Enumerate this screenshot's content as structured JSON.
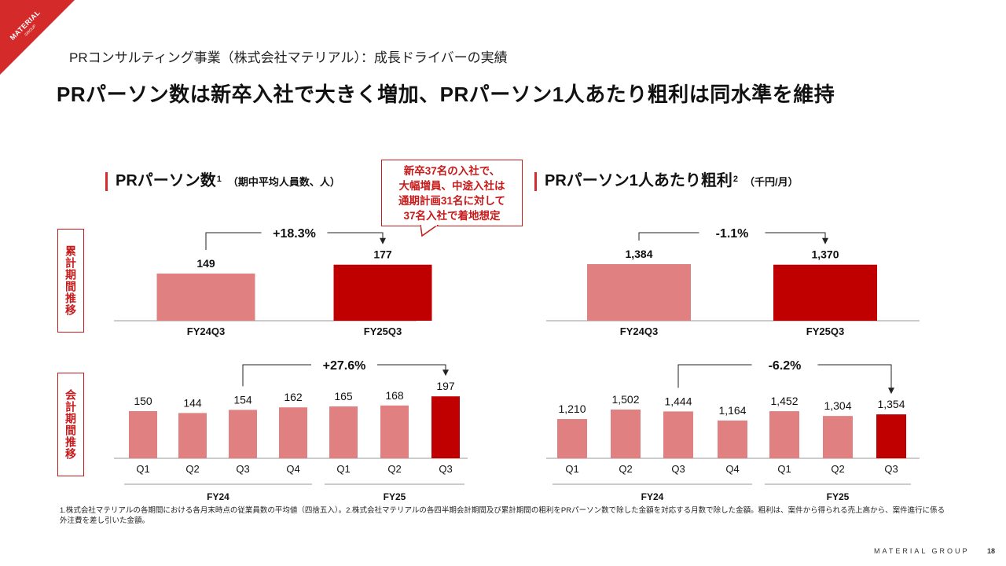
{
  "brand": {
    "logo_text": "MATERIAL",
    "logo_sub": "GROUP",
    "footer_name": "MATERIAL GROUP",
    "page_number": "18",
    "colors": {
      "accent": "#c00000",
      "light_bar": "#e08080",
      "title_bar": "#d62c2c"
    }
  },
  "section_title": "PRコンサルティング事業（株式会社マテリアル）：成長ドライバーの実績",
  "headline": "PRパーソン数は新卒入社で大きく増加、PRパーソン1人あたり粗利は同水準を維持",
  "left": {
    "title": "PRパーソン数",
    "sup": "1",
    "unit": "（期中平均人員数、人）"
  },
  "right": {
    "title": "PRパーソン1人あたり粗利",
    "sup": "2",
    "unit": "（千円/月）"
  },
  "row_labels": {
    "cumulative": "累計期間推移",
    "quarterly": "会計期間推移"
  },
  "callout": {
    "lines": [
      "新卒37名の入社で、",
      "大幅増員、中途入社は",
      "通期計画31名に対して",
      "37名入社で着地想定"
    ]
  },
  "chart_data": [
    {
      "id": "persons-cumulative",
      "type": "bar",
      "categories": [
        "FY24Q3",
        "FY25Q3"
      ],
      "values": [
        149,
        177
      ],
      "labels": [
        "149",
        "177"
      ],
      "highlight": [
        false,
        true
      ],
      "change": "+18.3%",
      "change_from": 0,
      "change_to": 1
    },
    {
      "id": "persons-quarterly",
      "type": "bar",
      "categories": [
        "Q1",
        "Q2",
        "Q3",
        "Q4",
        "Q1",
        "Q2",
        "Q3"
      ],
      "values": [
        150,
        144,
        154,
        162,
        165,
        168,
        197
      ],
      "labels": [
        "150",
        "144",
        "154",
        "162",
        "165",
        "168",
        "197"
      ],
      "highlight": [
        false,
        false,
        false,
        false,
        false,
        false,
        true
      ],
      "groups": [
        {
          "name": "FY24",
          "start": 0,
          "end": 3
        },
        {
          "name": "FY25",
          "start": 4,
          "end": 6
        }
      ],
      "change": "+27.6%",
      "change_from": 2,
      "change_to": 6
    },
    {
      "id": "profit-cumulative",
      "type": "bar",
      "categories": [
        "FY24Q3",
        "FY25Q3"
      ],
      "values": [
        1384,
        1370
      ],
      "labels": [
        "1,384",
        "1,370"
      ],
      "highlight": [
        false,
        true
      ],
      "change": "-1.1%",
      "change_from": 0,
      "change_to": 1
    },
    {
      "id": "profit-quarterly",
      "type": "bar",
      "categories": [
        "Q1",
        "Q2",
        "Q3",
        "Q4",
        "Q1",
        "Q2",
        "Q3"
      ],
      "values": [
        1210,
        1502,
        1444,
        1164,
        1452,
        1304,
        1354
      ],
      "labels": [
        "1,210",
        "1,502",
        "1,444",
        "1,164",
        "1,452",
        "1,304",
        "1,354"
      ],
      "highlight": [
        false,
        false,
        false,
        false,
        false,
        false,
        true
      ],
      "groups": [
        {
          "name": "FY24",
          "start": 0,
          "end": 3
        },
        {
          "name": "FY25",
          "start": 4,
          "end": 6
        }
      ],
      "change": "-6.2%",
      "change_from": 2,
      "change_to": 6
    }
  ],
  "footnote": "1.株式会社マテリアルの各期間における各月末時点の従業員数の平均値（四捨五入）。2.株式会社マテリアルの各四半期会計期間及び累計期間の粗利をPRパーソン数で除した金額を対応する月数で除した金額。粗利は、案件から得られる売上高から、案件進行に係る外注費を差し引いた金額。"
}
